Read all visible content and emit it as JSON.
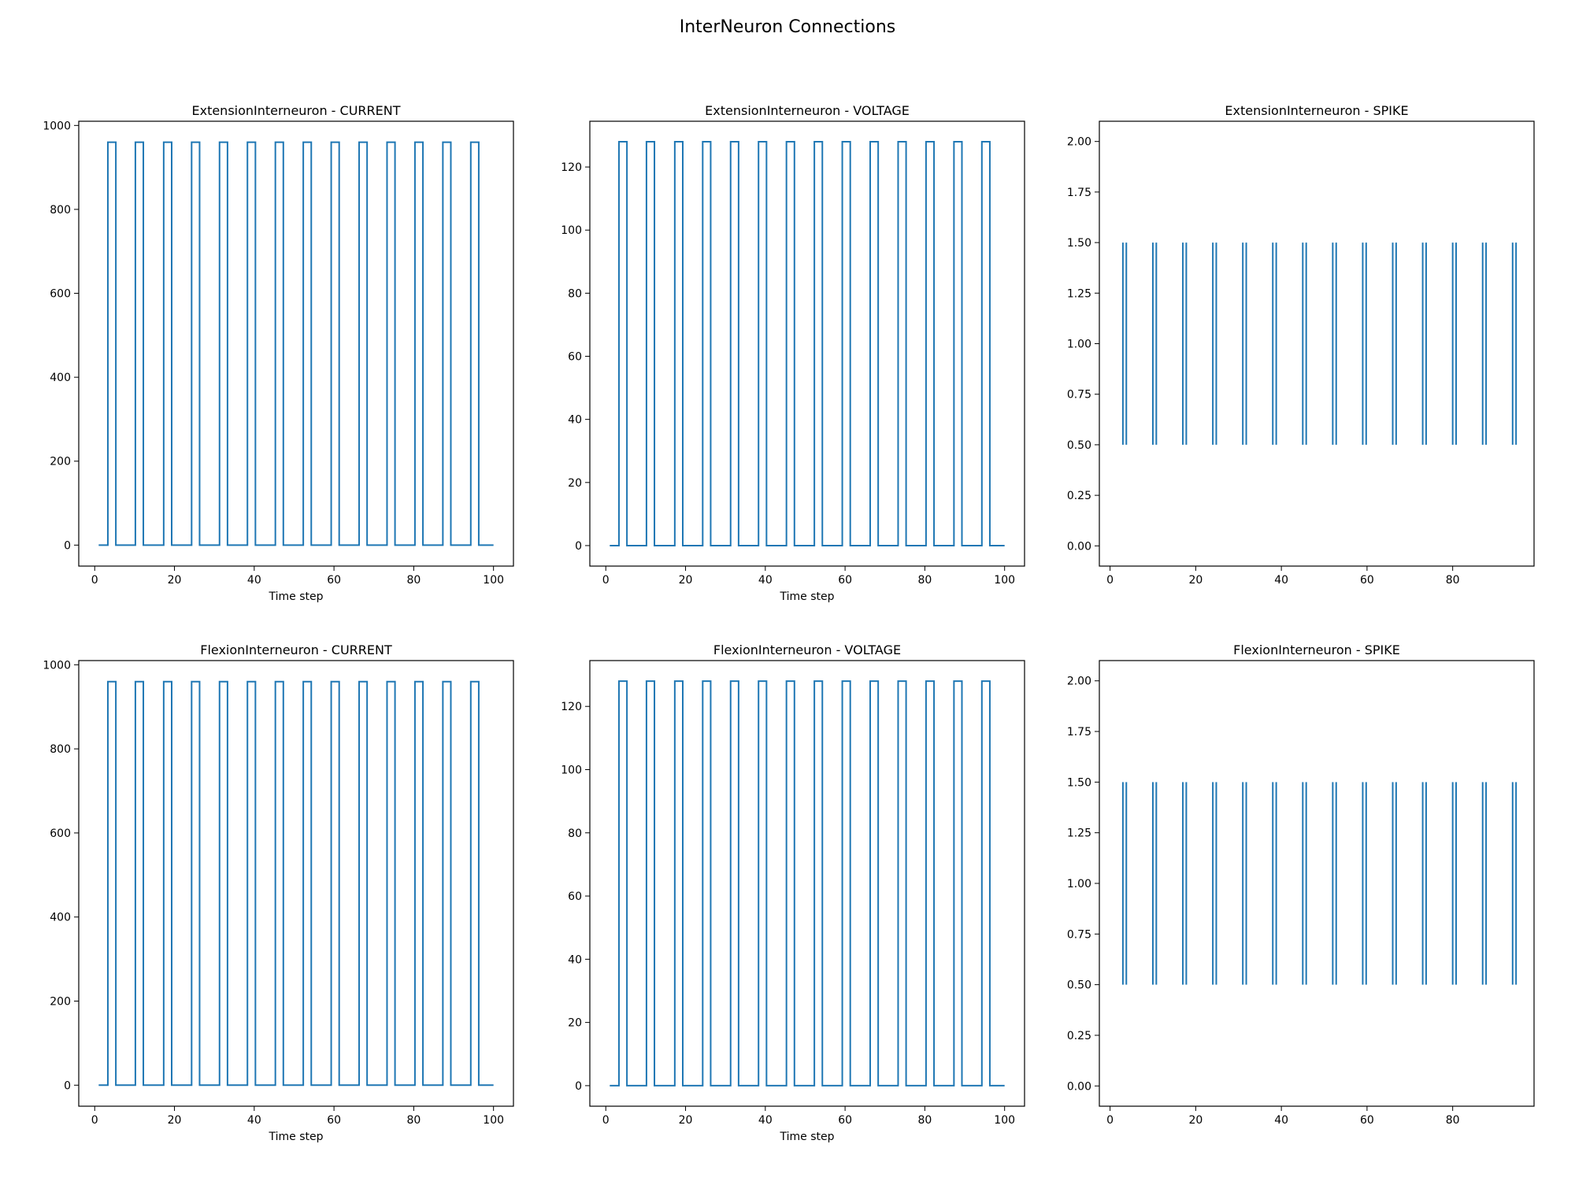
{
  "figure": {
    "title": "InterNeuron Connections"
  },
  "colors": {
    "line": "#1f77b4",
    "axis": "#000000",
    "background": "#ffffff"
  },
  "chart_data": [
    {
      "type": "line",
      "step": true,
      "title": "ExtensionInterneuron - CURRENT",
      "xlabel": "Time step",
      "ylabel": "",
      "xlim": [
        -4,
        105
      ],
      "ylim": [
        -50,
        1010
      ],
      "xticks": [
        0,
        20,
        40,
        60,
        80,
        100
      ],
      "yticks": [
        0,
        200,
        400,
        600,
        800,
        1000
      ],
      "yticklabels": [
        "0",
        "200",
        "400",
        "600",
        "800",
        "1000"
      ],
      "pulse": {
        "x_start": 1,
        "x_end": 100,
        "low": 0,
        "high": 960,
        "rise_at": [
          3.3,
          10.2,
          17.3,
          24.3,
          31.3,
          38.3,
          45.3,
          52.3,
          59.3,
          66.3,
          73.3,
          80.3,
          87.3,
          94.3
        ],
        "width": 2
      }
    },
    {
      "type": "line",
      "step": true,
      "title": "ExtensionInterneuron - VOLTAGE",
      "xlabel": "Time step",
      "ylabel": "",
      "xlim": [
        -4,
        105
      ],
      "ylim": [
        -6.5,
        134.5
      ],
      "xticks": [
        0,
        20,
        40,
        60,
        80,
        100
      ],
      "yticks": [
        0,
        20,
        40,
        60,
        80,
        100,
        120
      ],
      "yticklabels": [
        "0",
        "20",
        "40",
        "60",
        "80",
        "100",
        "120"
      ],
      "pulse": {
        "x_start": 1,
        "x_end": 100,
        "low": 0,
        "high": 128,
        "rise_at": [
          3.3,
          10.2,
          17.3,
          24.3,
          31.3,
          38.3,
          45.3,
          52.3,
          59.3,
          66.3,
          73.3,
          80.3,
          87.3,
          94.3
        ],
        "width": 2
      }
    },
    {
      "type": "event",
      "title": "ExtensionInterneuron - SPIKE",
      "xlabel": "",
      "ylabel": "",
      "xlim": [
        -2.5,
        99
      ],
      "ylim": [
        -0.1,
        2.1
      ],
      "xticks": [
        0,
        20,
        40,
        60,
        80
      ],
      "yticks": [
        0,
        0.25,
        0.5,
        0.75,
        1,
        1.25,
        1.5,
        1.75,
        2
      ],
      "yticklabels": [
        "0.00",
        "0.25",
        "0.50",
        "0.75",
        "1.00",
        "1.25",
        "1.50",
        "1.75",
        "2.00"
      ],
      "events": {
        "y_range": [
          0.5,
          1.5
        ],
        "x": [
          3,
          3.8,
          10,
          10.8,
          17,
          17.8,
          24,
          24.8,
          31,
          31.8,
          38,
          38.8,
          45,
          45.8,
          52,
          52.8,
          59,
          59.8,
          66,
          66.8,
          73,
          73.8,
          80,
          80.8,
          87,
          87.8,
          94,
          94.8
        ]
      }
    },
    {
      "type": "line",
      "step": true,
      "title": "FlexionInterneuron - CURRENT",
      "xlabel": "Time step",
      "ylabel": "",
      "xlim": [
        -4,
        105
      ],
      "ylim": [
        -50,
        1010
      ],
      "xticks": [
        0,
        20,
        40,
        60,
        80,
        100
      ],
      "yticks": [
        0,
        200,
        400,
        600,
        800,
        1000
      ],
      "yticklabels": [
        "0",
        "200",
        "400",
        "600",
        "800",
        "1000"
      ],
      "pulse": {
        "x_start": 1,
        "x_end": 100,
        "low": 0,
        "high": 960,
        "rise_at": [
          3.3,
          10.2,
          17.3,
          24.3,
          31.3,
          38.3,
          45.3,
          52.3,
          59.3,
          66.3,
          73.3,
          80.3,
          87.3,
          94.3
        ],
        "width": 2
      }
    },
    {
      "type": "line",
      "step": true,
      "title": "FlexionInterneuron - VOLTAGE",
      "xlabel": "Time step",
      "ylabel": "",
      "xlim": [
        -4,
        105
      ],
      "ylim": [
        -6.5,
        134.5
      ],
      "xticks": [
        0,
        20,
        40,
        60,
        80,
        100
      ],
      "yticks": [
        0,
        20,
        40,
        60,
        80,
        100,
        120
      ],
      "yticklabels": [
        "0",
        "20",
        "40",
        "60",
        "80",
        "100",
        "120"
      ],
      "pulse": {
        "x_start": 1,
        "x_end": 100,
        "low": 0,
        "high": 128,
        "rise_at": [
          3.3,
          10.2,
          17.3,
          24.3,
          31.3,
          38.3,
          45.3,
          52.3,
          59.3,
          66.3,
          73.3,
          80.3,
          87.3,
          94.3
        ],
        "width": 2
      }
    },
    {
      "type": "event",
      "title": "FlexionInterneuron - SPIKE",
      "xlabel": "",
      "ylabel": "",
      "xlim": [
        -2.5,
        99
      ],
      "ylim": [
        -0.1,
        2.1
      ],
      "xticks": [
        0,
        20,
        40,
        60,
        80
      ],
      "yticks": [
        0,
        0.25,
        0.5,
        0.75,
        1,
        1.25,
        1.5,
        1.75,
        2
      ],
      "yticklabels": [
        "0.00",
        "0.25",
        "0.50",
        "0.75",
        "1.00",
        "1.25",
        "1.50",
        "1.75",
        "2.00"
      ],
      "events": {
        "y_range": [
          0.5,
          1.5
        ],
        "x": [
          3,
          3.8,
          10,
          10.8,
          17,
          17.8,
          24,
          24.8,
          31,
          31.8,
          38,
          38.8,
          45,
          45.8,
          52,
          52.8,
          59,
          59.8,
          66,
          66.8,
          73,
          73.8,
          80,
          80.8,
          87,
          87.8,
          94,
          94.8
        ]
      }
    }
  ]
}
